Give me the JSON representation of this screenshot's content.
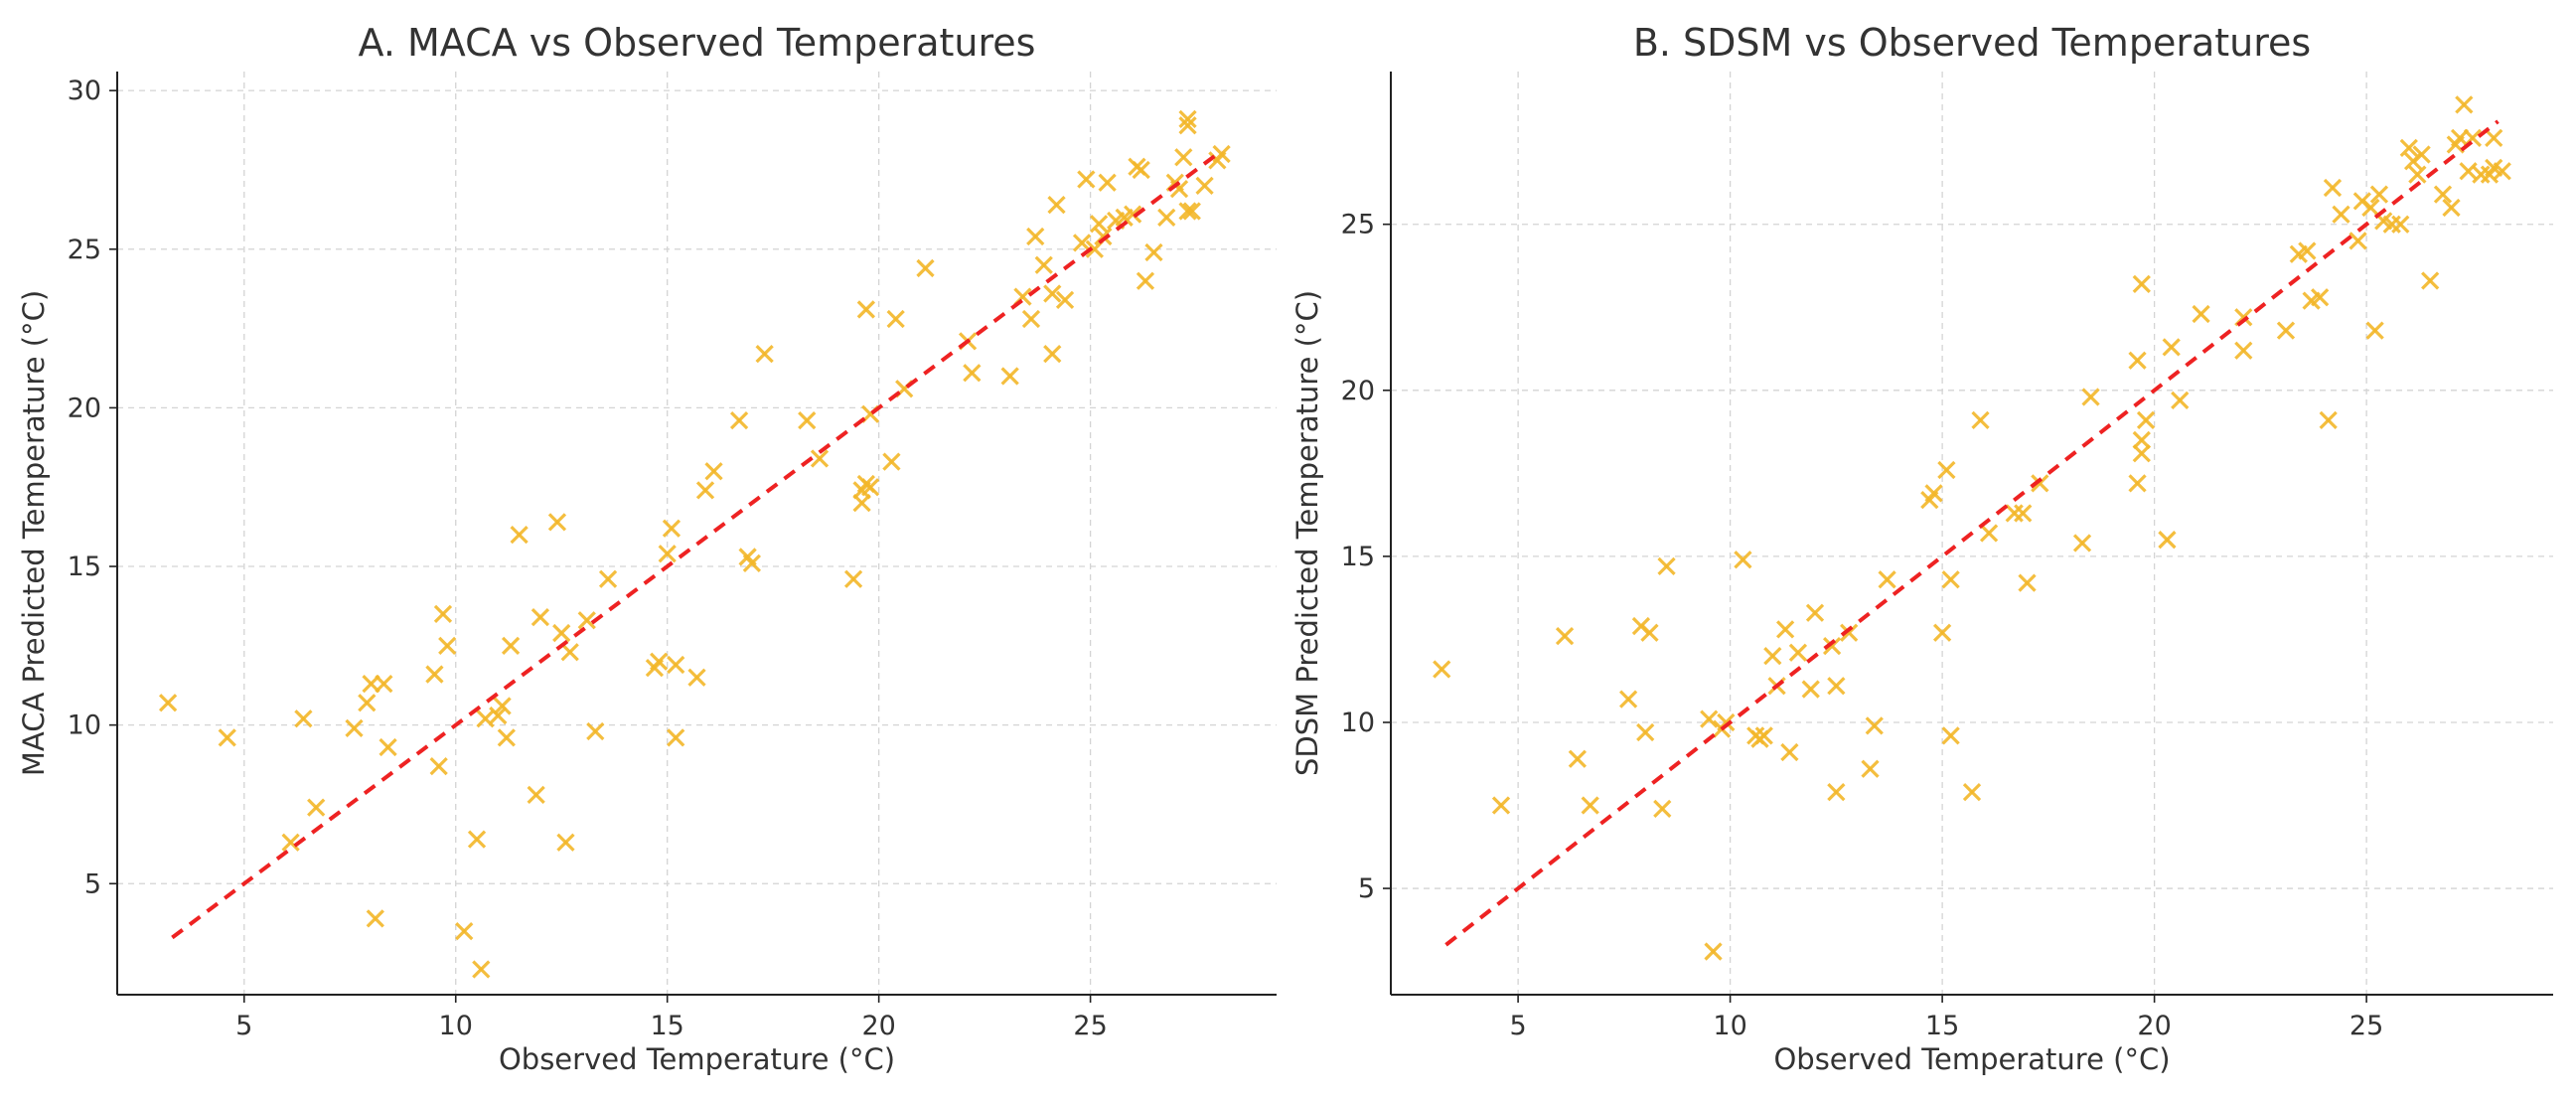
{
  "chart_data": [
    {
      "type": "scatter",
      "title": "A. MACA vs Observed Temperatures",
      "xlabel": "Observed Temperature (°C)",
      "ylabel": "MACA Predicted Temperature (°C)",
      "xlim": [
        2.0,
        29.4
      ],
      "ylim": [
        1.5,
        30.6
      ],
      "xticks": [
        5,
        10,
        15,
        20,
        25
      ],
      "yticks": [
        5,
        10,
        15,
        20,
        25,
        30
      ],
      "grid": true,
      "marker": "x",
      "marker_color": "#f3b72a",
      "fit_color": "#ee2222",
      "fit_line": {
        "x": [
          3.3,
          28.1
        ],
        "y": [
          3.3,
          28.1
        ]
      },
      "points": [
        [
          3.2,
          10.7
        ],
        [
          4.6,
          9.6
        ],
        [
          6.1,
          6.3
        ],
        [
          6.4,
          10.2
        ],
        [
          6.7,
          7.4
        ],
        [
          7.6,
          9.9
        ],
        [
          7.9,
          10.7
        ],
        [
          8.0,
          11.3
        ],
        [
          8.1,
          3.9
        ],
        [
          8.3,
          11.3
        ],
        [
          8.4,
          9.3
        ],
        [
          9.5,
          11.6
        ],
        [
          9.6,
          8.7
        ],
        [
          9.7,
          13.5
        ],
        [
          9.8,
          12.5
        ],
        [
          10.2,
          3.5
        ],
        [
          10.5,
          6.4
        ],
        [
          10.6,
          2.3
        ],
        [
          10.7,
          10.2
        ],
        [
          11.0,
          10.3
        ],
        [
          11.1,
          10.6
        ],
        [
          11.2,
          9.6
        ],
        [
          11.3,
          12.5
        ],
        [
          11.5,
          16.0
        ],
        [
          11.9,
          7.8
        ],
        [
          12.0,
          13.4
        ],
        [
          12.4,
          16.4
        ],
        [
          12.5,
          12.9
        ],
        [
          12.6,
          6.3
        ],
        [
          12.7,
          12.3
        ],
        [
          13.1,
          13.3
        ],
        [
          13.3,
          9.8
        ],
        [
          13.6,
          14.6
        ],
        [
          14.7,
          11.8
        ],
        [
          14.8,
          12.0
        ],
        [
          15.0,
          15.4
        ],
        [
          15.1,
          16.2
        ],
        [
          15.2,
          11.9
        ],
        [
          15.2,
          9.6
        ],
        [
          15.7,
          11.5
        ],
        [
          15.9,
          17.4
        ],
        [
          16.1,
          18.0
        ],
        [
          16.7,
          19.6
        ],
        [
          16.9,
          15.3
        ],
        [
          17.0,
          15.1
        ],
        [
          17.3,
          21.7
        ],
        [
          18.3,
          19.6
        ],
        [
          18.6,
          18.4
        ],
        [
          19.4,
          14.6
        ],
        [
          19.6,
          17.0
        ],
        [
          19.6,
          17.4
        ],
        [
          19.7,
          23.1
        ],
        [
          19.7,
          17.6
        ],
        [
          19.8,
          17.5
        ],
        [
          19.8,
          19.8
        ],
        [
          20.3,
          18.3
        ],
        [
          20.4,
          22.8
        ],
        [
          20.6,
          20.6
        ],
        [
          21.1,
          24.4
        ],
        [
          22.1,
          22.1
        ],
        [
          22.2,
          21.1
        ],
        [
          23.1,
          21.0
        ],
        [
          23.4,
          23.5
        ],
        [
          23.6,
          22.8
        ],
        [
          23.7,
          25.4
        ],
        [
          23.9,
          24.5
        ],
        [
          24.1,
          23.6
        ],
        [
          24.1,
          21.7
        ],
        [
          24.2,
          26.4
        ],
        [
          24.4,
          23.4
        ],
        [
          24.8,
          25.2
        ],
        [
          24.9,
          27.2
        ],
        [
          25.1,
          25.0
        ],
        [
          25.2,
          25.8
        ],
        [
          25.3,
          25.4
        ],
        [
          25.4,
          27.1
        ],
        [
          25.6,
          25.9
        ],
        [
          25.8,
          26.0
        ],
        [
          26.0,
          26.1
        ],
        [
          26.1,
          27.6
        ],
        [
          26.2,
          27.5
        ],
        [
          26.3,
          24.0
        ],
        [
          26.5,
          24.9
        ],
        [
          26.8,
          26.0
        ],
        [
          27.0,
          27.1
        ],
        [
          27.1,
          26.9
        ],
        [
          27.2,
          27.9
        ],
        [
          27.3,
          26.2
        ],
        [
          27.3,
          29.1
        ],
        [
          27.3,
          28.9
        ],
        [
          27.4,
          26.2
        ],
        [
          27.7,
          27.0
        ],
        [
          28.0,
          27.8
        ],
        [
          28.1,
          28.0
        ]
      ]
    },
    {
      "type": "scatter",
      "title": "B. SDSM vs Observed Temperatures",
      "xlabel": "Observed Temperature (°C)",
      "ylabel": "SDSM Predicted Temperature (°C)",
      "xlim": [
        2.0,
        29.4
      ],
      "ylim": [
        1.8,
        29.6
      ],
      "xticks": [
        5,
        10,
        15,
        20,
        25
      ],
      "yticks": [
        5,
        10,
        15,
        20,
        25
      ],
      "grid": true,
      "marker": "x",
      "marker_color": "#f3b72a",
      "fit_color": "#ee2222",
      "fit_line": {
        "x": [
          3.3,
          28.1
        ],
        "y": [
          3.3,
          28.1
        ]
      },
      "points": [
        [
          3.2,
          11.6
        ],
        [
          4.6,
          7.5
        ],
        [
          6.1,
          12.6
        ],
        [
          6.4,
          8.9
        ],
        [
          6.7,
          7.5
        ],
        [
          7.6,
          10.7
        ],
        [
          7.9,
          12.9
        ],
        [
          8.0,
          9.7
        ],
        [
          8.1,
          12.7
        ],
        [
          8.4,
          7.4
        ],
        [
          8.5,
          14.7
        ],
        [
          9.5,
          10.1
        ],
        [
          9.6,
          3.1
        ],
        [
          9.8,
          9.8
        ],
        [
          9.9,
          10.0
        ],
        [
          10.3,
          14.9
        ],
        [
          10.6,
          9.6
        ],
        [
          10.7,
          9.5
        ],
        [
          10.8,
          9.6
        ],
        [
          11.0,
          12.0
        ],
        [
          11.1,
          11.1
        ],
        [
          11.3,
          12.8
        ],
        [
          11.4,
          9.1
        ],
        [
          11.6,
          12.1
        ],
        [
          11.9,
          11.0
        ],
        [
          12.0,
          13.3
        ],
        [
          12.4,
          12.3
        ],
        [
          12.5,
          11.1
        ],
        [
          12.5,
          7.9
        ],
        [
          12.8,
          12.7
        ],
        [
          13.3,
          8.6
        ],
        [
          13.4,
          9.9
        ],
        [
          13.7,
          14.3
        ],
        [
          14.7,
          16.7
        ],
        [
          14.8,
          16.9
        ],
        [
          15.0,
          12.7
        ],
        [
          15.1,
          17.6
        ],
        [
          15.2,
          9.6
        ],
        [
          15.2,
          14.3
        ],
        [
          15.7,
          7.9
        ],
        [
          15.9,
          19.1
        ],
        [
          16.1,
          15.7
        ],
        [
          16.7,
          16.3
        ],
        [
          16.9,
          16.3
        ],
        [
          17.0,
          14.2
        ],
        [
          17.3,
          17.2
        ],
        [
          18.3,
          15.4
        ],
        [
          18.5,
          19.8
        ],
        [
          19.6,
          17.2
        ],
        [
          19.6,
          20.9
        ],
        [
          19.7,
          23.2
        ],
        [
          19.7,
          18.5
        ],
        [
          19.7,
          18.1
        ],
        [
          19.8,
          19.1
        ],
        [
          20.3,
          15.5
        ],
        [
          20.4,
          21.3
        ],
        [
          20.6,
          19.7
        ],
        [
          21.1,
          22.3
        ],
        [
          22.1,
          22.2
        ],
        [
          22.1,
          21.2
        ],
        [
          23.1,
          21.8
        ],
        [
          23.4,
          24.1
        ],
        [
          23.6,
          24.2
        ],
        [
          23.7,
          22.7
        ],
        [
          23.9,
          22.8
        ],
        [
          24.1,
          19.1
        ],
        [
          24.2,
          26.1
        ],
        [
          24.4,
          25.3
        ],
        [
          24.8,
          24.5
        ],
        [
          24.9,
          25.7
        ],
        [
          25.1,
          25.5
        ],
        [
          25.2,
          21.8
        ],
        [
          25.3,
          25.9
        ],
        [
          25.4,
          25.1
        ],
        [
          25.6,
          25.0
        ],
        [
          25.8,
          25.0
        ],
        [
          26.0,
          27.3
        ],
        [
          26.1,
          26.9
        ],
        [
          26.2,
          26.5
        ],
        [
          26.3,
          27.1
        ],
        [
          26.5,
          23.3
        ],
        [
          26.8,
          25.9
        ],
        [
          27.0,
          25.5
        ],
        [
          27.1,
          27.4
        ],
        [
          27.2,
          27.6
        ],
        [
          27.3,
          28.6
        ],
        [
          27.4,
          26.6
        ],
        [
          27.5,
          27.6
        ],
        [
          27.7,
          26.5
        ],
        [
          28.0,
          27.6
        ],
        [
          28.0,
          26.7
        ],
        [
          28.2,
          26.6
        ],
        [
          27.9,
          26.5
        ]
      ]
    }
  ]
}
